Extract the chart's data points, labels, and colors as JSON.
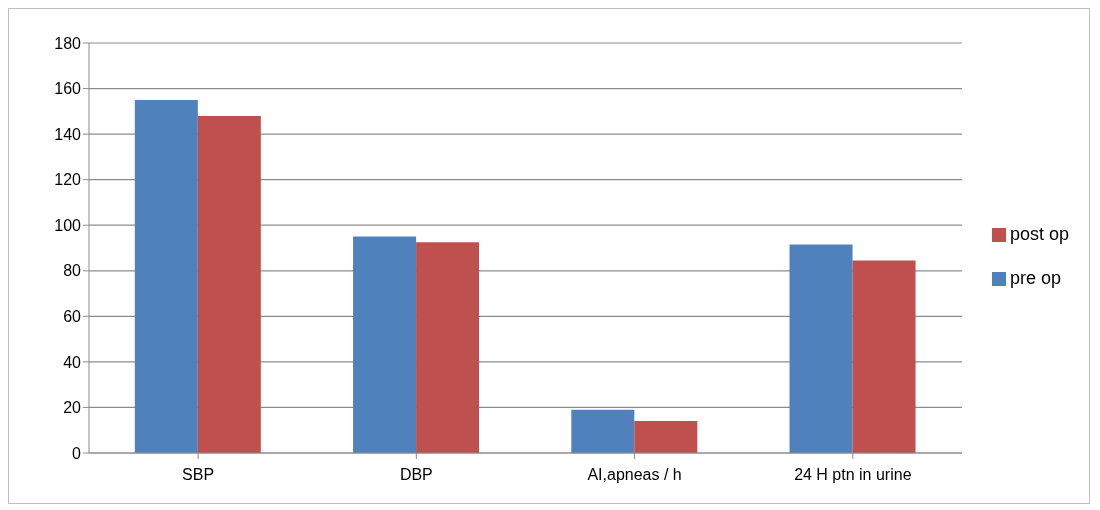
{
  "chart_data": {
    "type": "bar",
    "categories": [
      "SBP",
      "DBP",
      "AI,apneas / h",
      "24 H ptn in urine"
    ],
    "series": [
      {
        "name": "pre op",
        "color": "#4f81bd",
        "values": [
          155,
          95,
          19,
          91.5
        ]
      },
      {
        "name": "post op",
        "color": "#c0504d",
        "values": [
          148,
          92.5,
          14,
          84.5
        ]
      }
    ],
    "ylim": [
      0,
      180
    ],
    "yticks": [
      0,
      20,
      40,
      60,
      80,
      100,
      120,
      140,
      160,
      180
    ],
    "grid": "y",
    "legend": "right"
  }
}
